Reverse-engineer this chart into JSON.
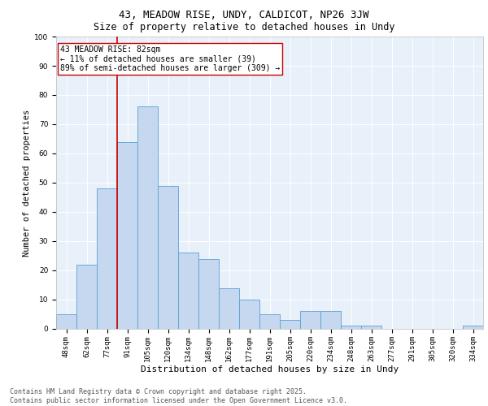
{
  "title1": "43, MEADOW RISE, UNDY, CALDICOT, NP26 3JW",
  "title2": "Size of property relative to detached houses in Undy",
  "xlabel": "Distribution of detached houses by size in Undy",
  "ylabel": "Number of detached properties",
  "categories": [
    "48sqm",
    "62sqm",
    "77sqm",
    "91sqm",
    "105sqm",
    "120sqm",
    "134sqm",
    "148sqm",
    "162sqm",
    "177sqm",
    "191sqm",
    "205sqm",
    "220sqm",
    "234sqm",
    "248sqm",
    "263sqm",
    "277sqm",
    "291sqm",
    "305sqm",
    "320sqm",
    "334sqm"
  ],
  "values": [
    5,
    22,
    48,
    64,
    76,
    49,
    26,
    24,
    14,
    10,
    5,
    3,
    6,
    6,
    1,
    1,
    0,
    0,
    0,
    0,
    1
  ],
  "bar_color": "#c5d8f0",
  "bar_edge_color": "#5a9fd4",
  "vline_x_index": 2.5,
  "vline_color": "#cc0000",
  "annotation_text": "43 MEADOW RISE: 82sqm\n← 11% of detached houses are smaller (39)\n89% of semi-detached houses are larger (309) →",
  "annotation_box_color": "#ffffff",
  "annotation_box_edge": "#cc0000",
  "ylim": [
    0,
    100
  ],
  "yticks": [
    0,
    10,
    20,
    30,
    40,
    50,
    60,
    70,
    80,
    90,
    100
  ],
  "bg_color": "#e8f0fa",
  "footer": "Contains HM Land Registry data © Crown copyright and database right 2025.\nContains public sector information licensed under the Open Government Licence v3.0.",
  "title1_fontsize": 9,
  "title2_fontsize": 8.5,
  "xlabel_fontsize": 8,
  "ylabel_fontsize": 7.5,
  "tick_fontsize": 6.5,
  "annotation_fontsize": 7,
  "footer_fontsize": 6
}
